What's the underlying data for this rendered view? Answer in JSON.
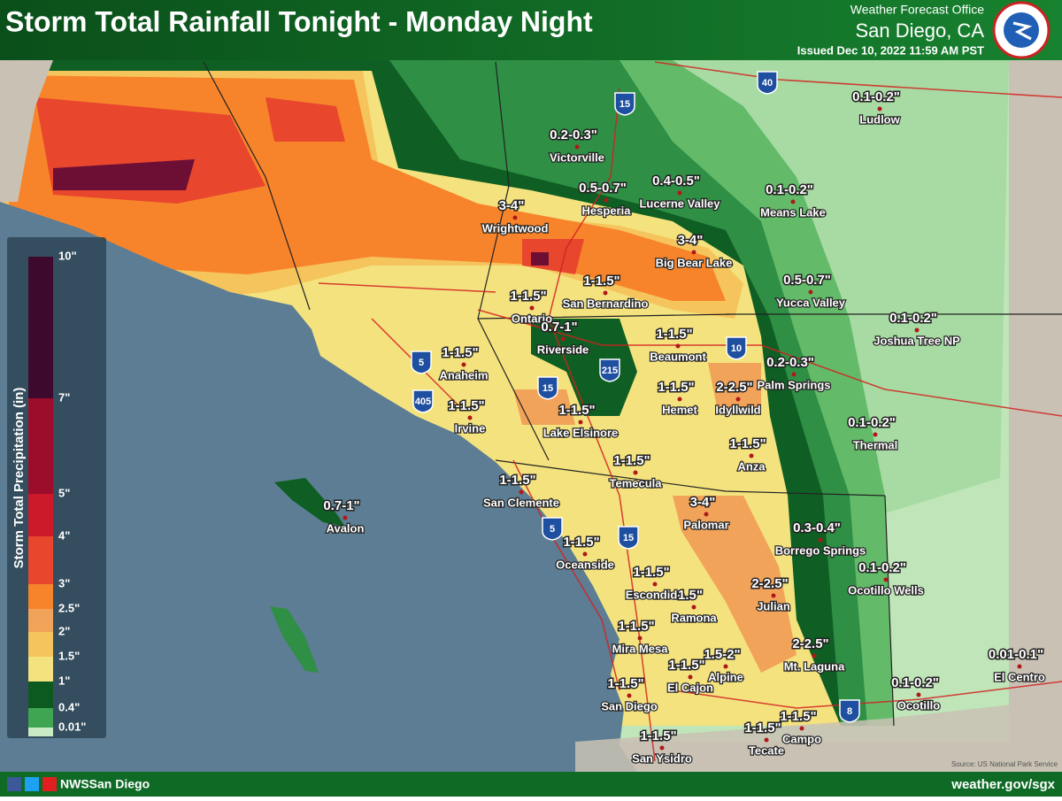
{
  "header": {
    "title": "Storm Total Rainfall Tonight - Monday Night",
    "office": "Weather Forecast Office",
    "city": "San Diego, CA",
    "issued": "Issued Dec 10, 2022 11:59 AM PST"
  },
  "legend": {
    "title": "Storm Total Precipitation (in)",
    "items": [
      {
        "label": "10\"",
        "color": "#3d0a2e"
      },
      {
        "label": "7\"",
        "color": "#9c0d2c"
      },
      {
        "label": "5\"",
        "color": "#cc1a2a"
      },
      {
        "label": "4\"",
        "color": "#e8462d"
      },
      {
        "label": "3\"",
        "color": "#f7842b"
      },
      {
        "label": "2.5\"",
        "color": "#f2a35a"
      },
      {
        "label": "2\"",
        "color": "#f6c45d"
      },
      {
        "label": "1.5\"",
        "color": "#f4e27e"
      },
      {
        "label": "1\"",
        "color": "#0c5a20"
      },
      {
        "label": "0.4\"",
        "color": "#3fa552"
      },
      {
        "label": "0.01\"",
        "color": "#c9ebc4"
      }
    ]
  },
  "locations": [
    {
      "name": "Ludlow",
      "amount": "0.1-0.2\""
    },
    {
      "name": "Victorville",
      "amount": "0.2-0.3\""
    },
    {
      "name": "Hesperia",
      "amount": "0.5-0.7\""
    },
    {
      "name": "Lucerne Valley",
      "amount": "0.4-0.5\""
    },
    {
      "name": "Means Lake",
      "amount": "0.1-0.2\""
    },
    {
      "name": "Wrightwood",
      "amount": "3-4\""
    },
    {
      "name": "Big Bear Lake",
      "amount": "3-4\""
    },
    {
      "name": "Yucca Valley",
      "amount": "0.5-0.7\""
    },
    {
      "name": "Ontario",
      "amount": "1-1.5\""
    },
    {
      "name": "San Bernardino",
      "amount": "1-1.5\""
    },
    {
      "name": "Riverside",
      "amount": "0.7-1\""
    },
    {
      "name": "Joshua Tree NP",
      "amount": "0.1-0.2\""
    },
    {
      "name": "Beaumont",
      "amount": "1-1.5\""
    },
    {
      "name": "Anaheim",
      "amount": "1-1.5\""
    },
    {
      "name": "Palm Springs",
      "amount": "0.2-0.3\""
    },
    {
      "name": "Hemet",
      "amount": "1-1.5\""
    },
    {
      "name": "Idyllwild",
      "amount": "2-2.5\""
    },
    {
      "name": "Irvine",
      "amount": "1-1.5\""
    },
    {
      "name": "Lake Elsinore",
      "amount": "1-1.5\""
    },
    {
      "name": "Thermal",
      "amount": "0.1-0.2\""
    },
    {
      "name": "Anza",
      "amount": "1-1.5\""
    },
    {
      "name": "Temecula",
      "amount": "1-1.5\""
    },
    {
      "name": "San Clemente",
      "amount": "1-1.5\""
    },
    {
      "name": "Avalon",
      "amount": "0.7-1\""
    },
    {
      "name": "Palomar",
      "amount": "3-4\""
    },
    {
      "name": "Borrego Springs",
      "amount": "0.3-0.4\""
    },
    {
      "name": "Oceanside",
      "amount": "1-1.5\""
    },
    {
      "name": "Ocotillo Wells",
      "amount": "0.1-0.2\""
    },
    {
      "name": "Escondido",
      "amount": "1-1.5\""
    },
    {
      "name": "Ramona",
      "amount": "1.5\""
    },
    {
      "name": "Julian",
      "amount": "2-2.5\""
    },
    {
      "name": "Mira Mesa",
      "amount": "1-1.5\""
    },
    {
      "name": "Mt. Laguna",
      "amount": "2-2.5\""
    },
    {
      "name": "El Centro",
      "amount": "0.01-0.1\""
    },
    {
      "name": "El Cajon",
      "amount": "1-1.5\""
    },
    {
      "name": "Alpine",
      "amount": "1.5-2\""
    },
    {
      "name": "San Diego",
      "amount": "1-1.5\""
    },
    {
      "name": "Ocotillo",
      "amount": "0.1-0.2\""
    },
    {
      "name": "Campo",
      "amount": "1-1.5\""
    },
    {
      "name": "Tecate",
      "amount": "1-1.5\""
    },
    {
      "name": "San Ysidro",
      "amount": "1-1.5\""
    }
  ],
  "highways": [
    "40",
    "15",
    "10",
    "215",
    "15",
    "5",
    "405",
    "5",
    "15",
    "8"
  ],
  "source": "Source: US National Park Service",
  "footer": {
    "social": "NWSSan Diego",
    "website": "weather.gov/sgx"
  }
}
